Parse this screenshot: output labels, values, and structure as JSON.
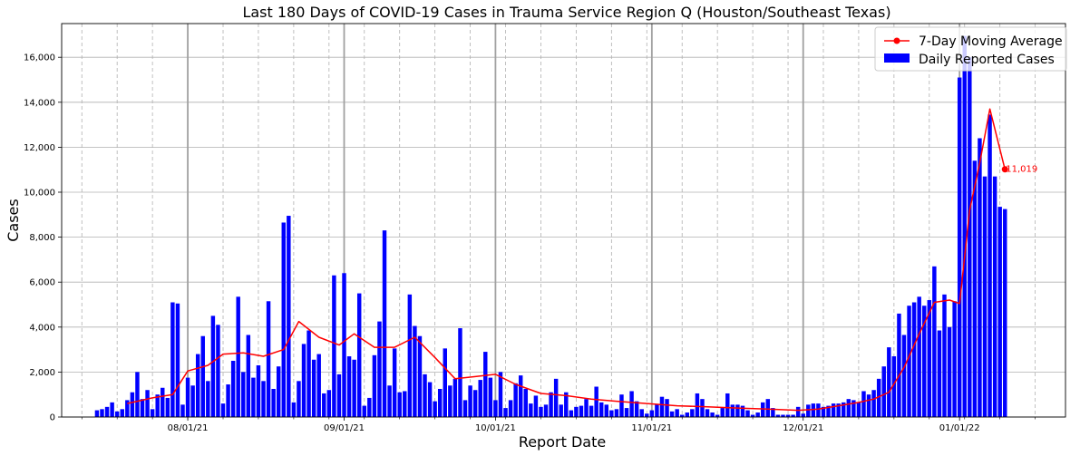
{
  "chart_data": {
    "type": "bar",
    "title": "Last 180 Days of COVID-19 Cases in Trauma Service Region Q (Houston/Southeast Texas)",
    "xlabel": "Report Date",
    "ylabel": "Cases",
    "ylim": [
      0,
      17500
    ],
    "yticks": [
      0,
      2000,
      4000,
      6000,
      8000,
      10000,
      12000,
      14000,
      16000
    ],
    "ytick_labels": [
      "0",
      "2,000",
      "4,000",
      "6,000",
      "8,000",
      "10,000",
      "12,000",
      "14,000",
      "16,000"
    ],
    "xlim": [
      "2021-07-07",
      "2022-01-22"
    ],
    "xticks": [
      "2021-08-01",
      "2021-09-01",
      "2021-10-01",
      "2021-11-01",
      "2021-12-01",
      "2022-01-01"
    ],
    "xtick_labels": [
      "08/01/21",
      "09/01/21",
      "10/01/21",
      "11/01/21",
      "12/01/21",
      "01/01/22"
    ],
    "grid": true,
    "legend_position": "top-right",
    "colors": {
      "bars": "#0000ff",
      "line": "#ff0000",
      "grid": "#b0b0b0"
    },
    "series": [
      {
        "name": "Daily Reported Cases",
        "type": "bar",
        "x": [
          "2021-07-14",
          "2021-07-15",
          "2021-07-16",
          "2021-07-17",
          "2021-07-18",
          "2021-07-19",
          "2021-07-20",
          "2021-07-21",
          "2021-07-22",
          "2021-07-23",
          "2021-07-24",
          "2021-07-25",
          "2021-07-26",
          "2021-07-27",
          "2021-07-28",
          "2021-07-29",
          "2021-07-30",
          "2021-07-31",
          "2021-08-01",
          "2021-08-02",
          "2021-08-03",
          "2021-08-04",
          "2021-08-05",
          "2021-08-06",
          "2021-08-07",
          "2021-08-08",
          "2021-08-09",
          "2021-08-10",
          "2021-08-11",
          "2021-08-12",
          "2021-08-13",
          "2021-08-14",
          "2021-08-15",
          "2021-08-16",
          "2021-08-17",
          "2021-08-18",
          "2021-08-19",
          "2021-08-20",
          "2021-08-21",
          "2021-08-22",
          "2021-08-23",
          "2021-08-24",
          "2021-08-25",
          "2021-08-26",
          "2021-08-27",
          "2021-08-28",
          "2021-08-29",
          "2021-08-30",
          "2021-08-31",
          "2021-09-01",
          "2021-09-02",
          "2021-09-03",
          "2021-09-04",
          "2021-09-05",
          "2021-09-06",
          "2021-09-07",
          "2021-09-08",
          "2021-09-09",
          "2021-09-10",
          "2021-09-11",
          "2021-09-12",
          "2021-09-13",
          "2021-09-14",
          "2021-09-15",
          "2021-09-16",
          "2021-09-17",
          "2021-09-18",
          "2021-09-19",
          "2021-09-20",
          "2021-09-21",
          "2021-09-22",
          "2021-09-23",
          "2021-09-24",
          "2021-09-25",
          "2021-09-26",
          "2021-09-27",
          "2021-09-28",
          "2021-09-29",
          "2021-09-30",
          "2021-10-01",
          "2021-10-02",
          "2021-10-03",
          "2021-10-04",
          "2021-10-05",
          "2021-10-06",
          "2021-10-07",
          "2021-10-08",
          "2021-10-09",
          "2021-10-10",
          "2021-10-11",
          "2021-10-12",
          "2021-10-13",
          "2021-10-14",
          "2021-10-15",
          "2021-10-16",
          "2021-10-17",
          "2021-10-18",
          "2021-10-19",
          "2021-10-20",
          "2021-10-21",
          "2021-10-22",
          "2021-10-23",
          "2021-10-24",
          "2021-10-25",
          "2021-10-26",
          "2021-10-27",
          "2021-10-28",
          "2021-10-29",
          "2021-10-30",
          "2021-10-31",
          "2021-11-01",
          "2021-11-02",
          "2021-11-03",
          "2021-11-04",
          "2021-11-05",
          "2021-11-06",
          "2021-11-07",
          "2021-11-08",
          "2021-11-09",
          "2021-11-10",
          "2021-11-11",
          "2021-11-12",
          "2021-11-13",
          "2021-11-14",
          "2021-11-15",
          "2021-11-16",
          "2021-11-17",
          "2021-11-18",
          "2021-11-19",
          "2021-11-20",
          "2021-11-21",
          "2021-11-22",
          "2021-11-23",
          "2021-11-24",
          "2021-11-25",
          "2021-11-26",
          "2021-11-27",
          "2021-11-28",
          "2021-11-29",
          "2021-11-30",
          "2021-12-01",
          "2021-12-02",
          "2021-12-03",
          "2021-12-04",
          "2021-12-05",
          "2021-12-06",
          "2021-12-07",
          "2021-12-08",
          "2021-12-09",
          "2021-12-10",
          "2021-12-11",
          "2021-12-12",
          "2021-12-13",
          "2021-12-14",
          "2021-12-15",
          "2021-12-16",
          "2021-12-17",
          "2021-12-18",
          "2021-12-19",
          "2021-12-20",
          "2021-12-21",
          "2021-12-22",
          "2021-12-23",
          "2021-12-24",
          "2021-12-25",
          "2021-12-26",
          "2021-12-27",
          "2021-12-28",
          "2021-12-29",
          "2021-12-30",
          "2021-12-31",
          "2022-01-01",
          "2022-01-02",
          "2022-01-03",
          "2022-01-04",
          "2022-01-05",
          "2022-01-06",
          "2022-01-07",
          "2022-01-08",
          "2022-01-09",
          "2022-01-10"
        ],
        "values": [
          300,
          350,
          450,
          650,
          250,
          350,
          750,
          1100,
          2000,
          800,
          1200,
          350,
          1000,
          1300,
          850,
          5100,
          5050,
          550,
          1750,
          1400,
          2800,
          3600,
          1600,
          4500,
          4100,
          600,
          1450,
          2500,
          5350,
          2000,
          3650,
          1750,
          2300,
          1600,
          5150,
          1250,
          2250,
          8650,
          8950,
          650,
          1600,
          3250,
          3850,
          2550,
          2800,
          1050,
          1200,
          6300,
          1900,
          6400,
          2700,
          2550,
          5500,
          500,
          850,
          2750,
          4250,
          8300,
          1400,
          3050,
          1100,
          1150,
          5450,
          4050,
          3600,
          1900,
          1550,
          700,
          1250,
          3050,
          1400,
          1700,
          3950,
          750,
          1400,
          1200,
          1650,
          2900,
          1750,
          750,
          2000,
          400,
          750,
          1500,
          1850,
          1250,
          600,
          950,
          450,
          550,
          1100,
          1700,
          550,
          1100,
          300,
          450,
          500,
          800,
          500,
          1350,
          650,
          550,
          300,
          350,
          1000,
          400,
          1150,
          700,
          350,
          150,
          300,
          550,
          900,
          800,
          250,
          350,
          100,
          200,
          350,
          1050,
          800,
          350,
          200,
          100,
          400,
          1050,
          550,
          550,
          500,
          300,
          100,
          200,
          650,
          800,
          400,
          100,
          100,
          100,
          100,
          450,
          150,
          550,
          600,
          600,
          450,
          500,
          600,
          600,
          650,
          800,
          750,
          650,
          1150,
          1000,
          1200,
          1700,
          2250,
          3100,
          2700,
          4600,
          3650,
          4950,
          5100,
          5350,
          4950,
          5200,
          6700,
          3850,
          5450,
          4000,
          5150,
          15100,
          16950,
          16000,
          11400,
          12400,
          10700,
          13450,
          10700,
          9350,
          9250
        ]
      },
      {
        "name": "7-Day Moving Average",
        "type": "line",
        "x": [
          "2021-07-20",
          "2021-07-25",
          "2021-07-29",
          "2021-08-01",
          "2021-08-05",
          "2021-08-08",
          "2021-08-12",
          "2021-08-16",
          "2021-08-20",
          "2021-08-23",
          "2021-08-27",
          "2021-08-31",
          "2021-09-03",
          "2021-09-07",
          "2021-09-11",
          "2021-09-15",
          "2021-09-19",
          "2021-09-23",
          "2021-09-27",
          "2021-10-01",
          "2021-10-05",
          "2021-10-10",
          "2021-10-15",
          "2021-10-20",
          "2021-10-25",
          "2021-10-31",
          "2021-11-06",
          "2021-11-12",
          "2021-11-18",
          "2021-11-24",
          "2021-11-30",
          "2021-12-04",
          "2021-12-08",
          "2021-12-12",
          "2021-12-15",
          "2021-12-18",
          "2021-12-21",
          "2021-12-24",
          "2021-12-27",
          "2021-12-30",
          "2022-01-01",
          "2022-01-03",
          "2022-01-05",
          "2022-01-07",
          "2022-01-10"
        ],
        "values": [
          600,
          850,
          1000,
          2050,
          2300,
          2800,
          2850,
          2700,
          3000,
          4250,
          3550,
          3200,
          3700,
          3100,
          3100,
          3550,
          2650,
          1700,
          1800,
          1900,
          1450,
          1050,
          950,
          800,
          700,
          600,
          500,
          450,
          400,
          350,
          300,
          350,
          500,
          650,
          800,
          1100,
          2200,
          3700,
          5100,
          5200,
          5050,
          9200,
          11300,
          13700,
          11019
        ]
      }
    ],
    "annotation": {
      "x": "2022-01-10",
      "value": 11019,
      "label": "11,019"
    }
  }
}
